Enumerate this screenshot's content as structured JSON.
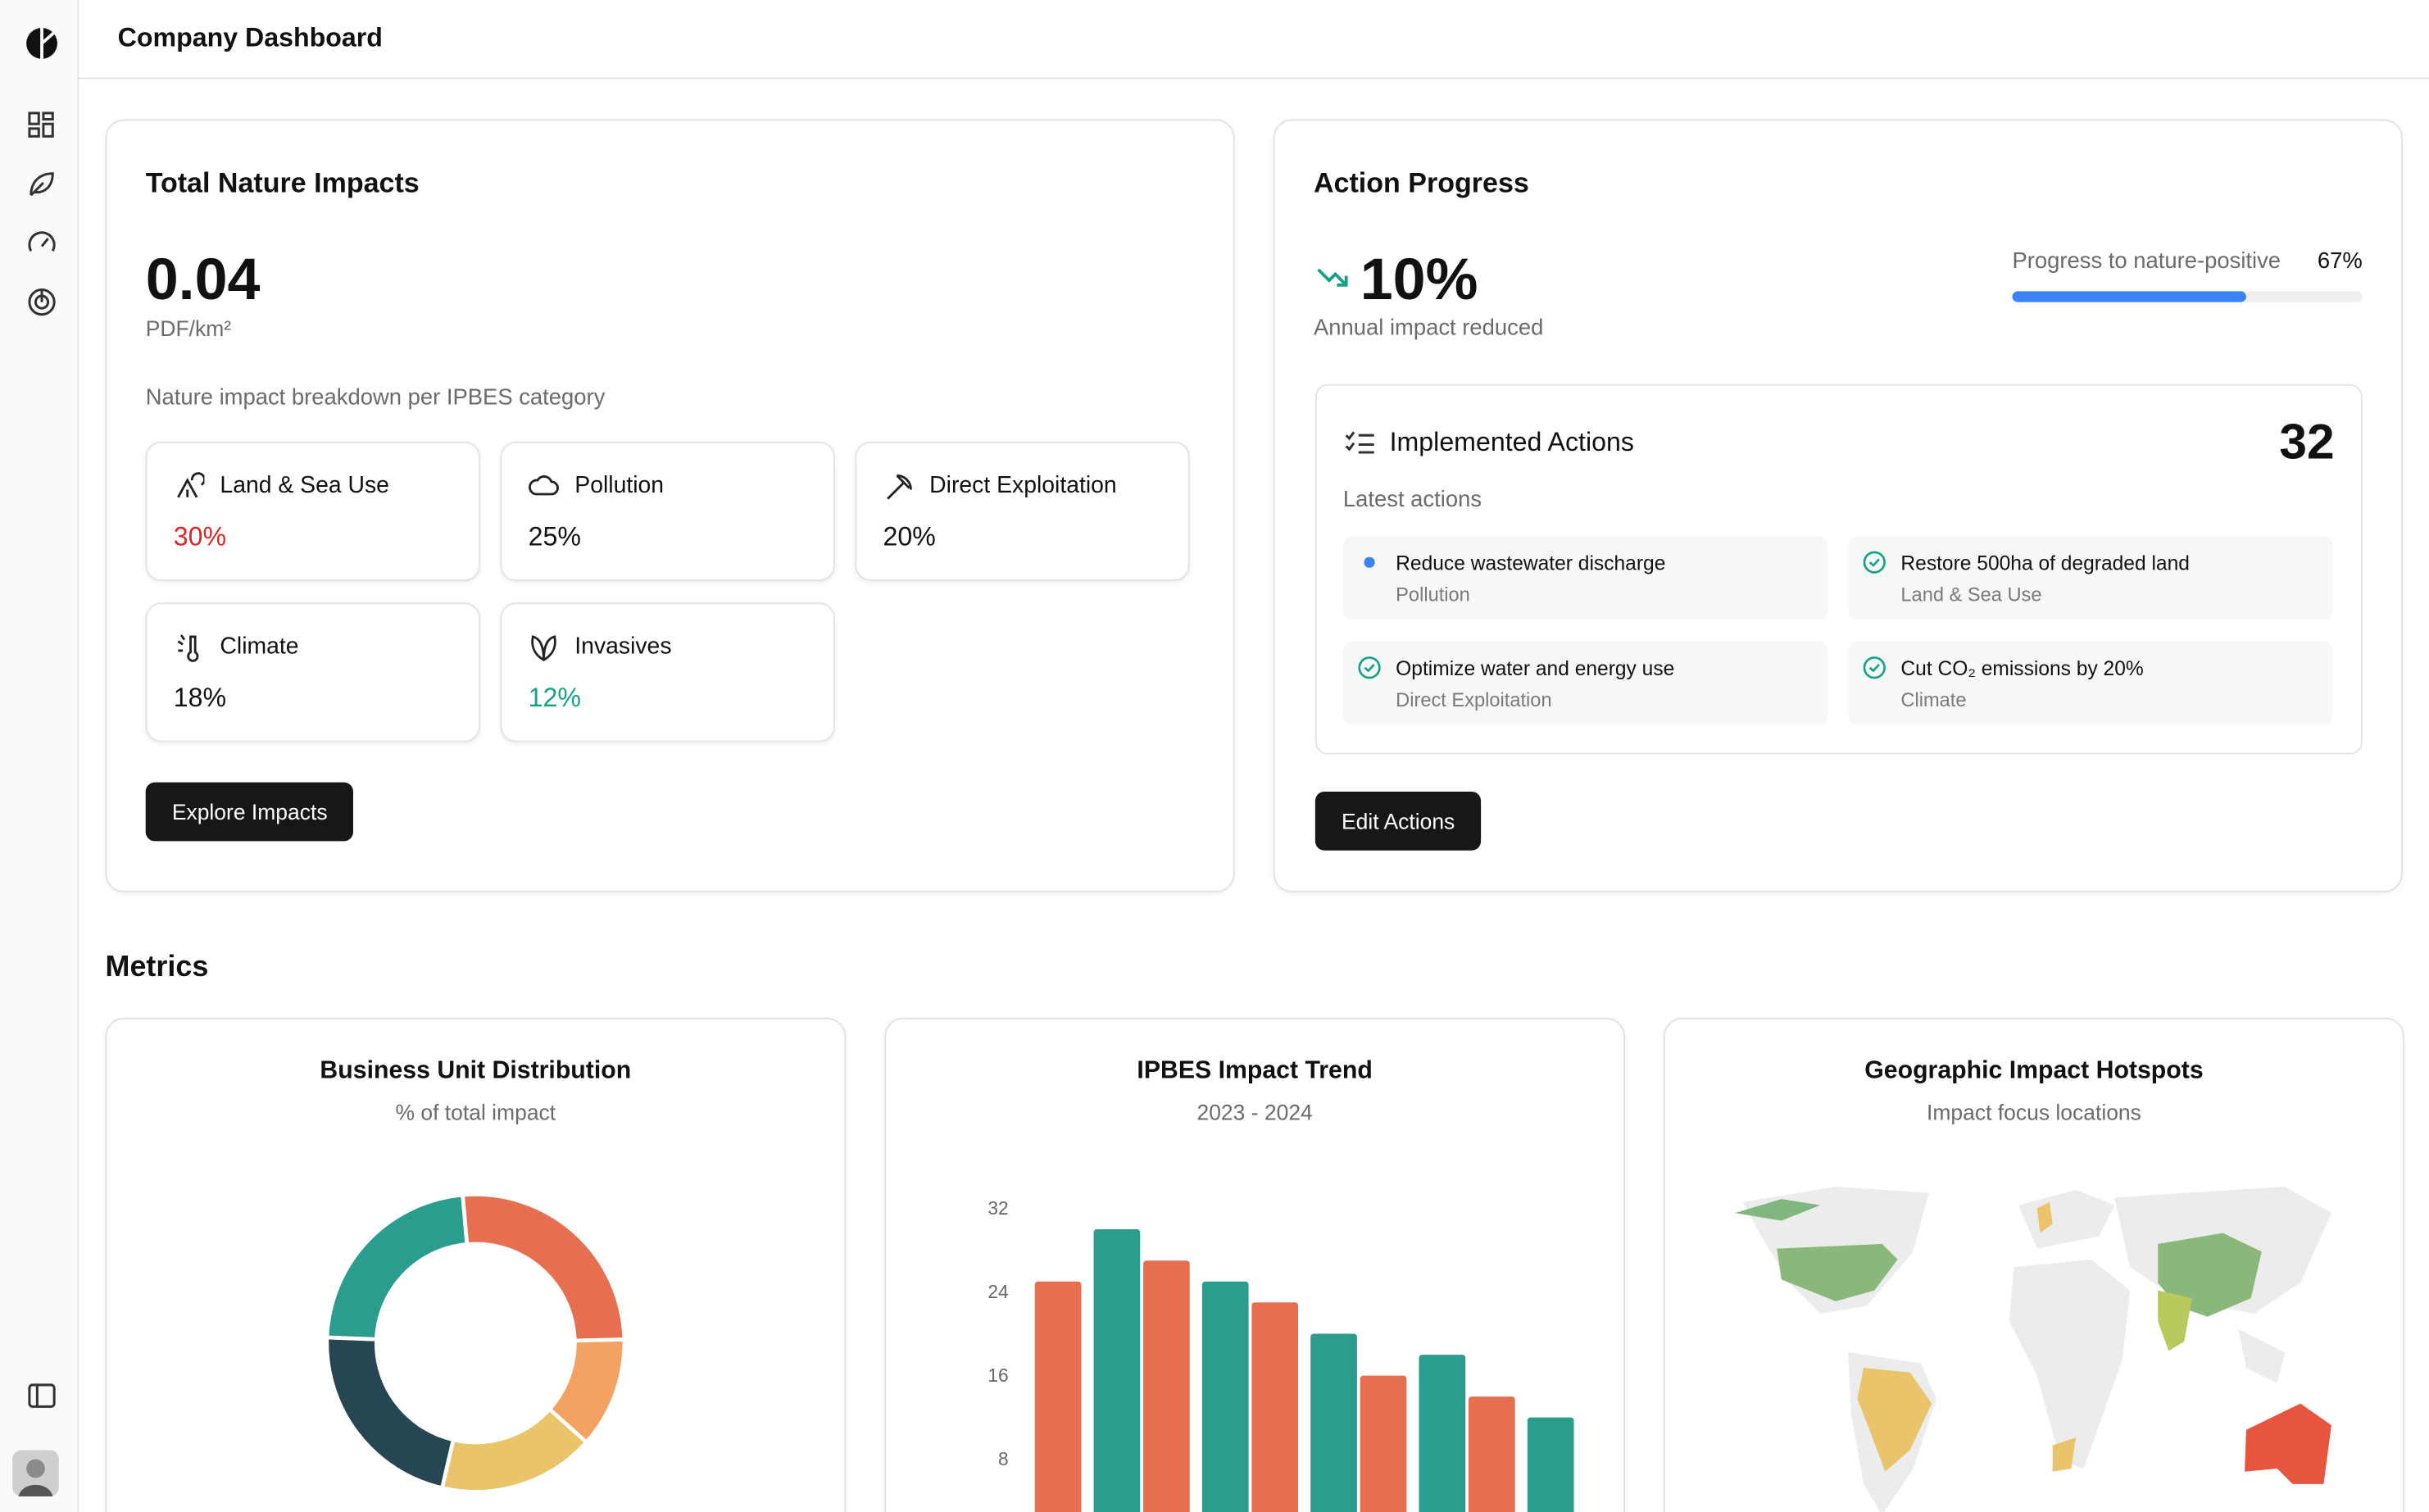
{
  "header": {
    "title": "Company Dashboard"
  },
  "impacts": {
    "title": "Total Nature Impacts",
    "value": "0.04",
    "unit": "PDF/km²",
    "breakdown_label": "Nature impact breakdown per IPBES category",
    "categories": [
      {
        "name": "Land & Sea Use",
        "percent": "30%",
        "color": "#dc2626"
      },
      {
        "name": "Pollution",
        "percent": "25%",
        "color": "#111111"
      },
      {
        "name": "Direct Exploitation",
        "percent": "20%",
        "color": "#111111"
      },
      {
        "name": "Climate",
        "percent": "18%",
        "color": "#111111"
      },
      {
        "name": "Invasives",
        "percent": "12%",
        "color": "#16a085"
      }
    ],
    "button": "Explore Impacts"
  },
  "actions": {
    "title": "Action Progress",
    "value": "10%",
    "value_label": "Annual impact reduced",
    "progress": {
      "label": "Progress to nature-positive",
      "value": 67,
      "value_label": "67%",
      "color": "#3b82f6"
    },
    "implemented": {
      "title": "Implemented Actions",
      "count": "32",
      "latest_label": "Latest actions",
      "items": [
        {
          "title": "Reduce wastewater discharge",
          "category": "Pollution",
          "completed": false
        },
        {
          "title": "Restore 500ha of degraded land",
          "category": "Land & Sea Use",
          "completed": true
        },
        {
          "title": "Optimize water and energy use",
          "category": "Direct Exploitation",
          "completed": true
        },
        {
          "title": "Cut CO₂ emissions by 20%",
          "category": "Climate",
          "completed": true
        }
      ]
    },
    "button": "Edit Actions"
  },
  "metrics": {
    "title": "Metrics"
  },
  "chart_data": [
    {
      "type": "pie",
      "title": "Business Unit Distribution",
      "subtitle": "% of total impact",
      "values": [
        26,
        12,
        17,
        22,
        23
      ],
      "colors": [
        "#e76f51",
        "#f4a261",
        "#e9c46a",
        "#264653",
        "#2a9d8f"
      ]
    },
    {
      "type": "bar",
      "title": "IPBES Impact Trend",
      "subtitle": "2023 - 2024",
      "categories": [
        null,
        null,
        null,
        null,
        null
      ],
      "series": [
        {
          "color": "#e76f51",
          "values": [
            25,
            27,
            23,
            16,
            14
          ]
        },
        {
          "color": "#2a9d8f",
          "values": [
            30,
            25,
            20,
            18,
            12
          ]
        }
      ],
      "ylim": [
        0,
        32
      ],
      "yticks": [
        8,
        16,
        24,
        32
      ],
      "grid": false
    },
    {
      "type": "map",
      "title": "Geographic Impact Hotspots",
      "subtitle": "Impact focus locations"
    }
  ]
}
